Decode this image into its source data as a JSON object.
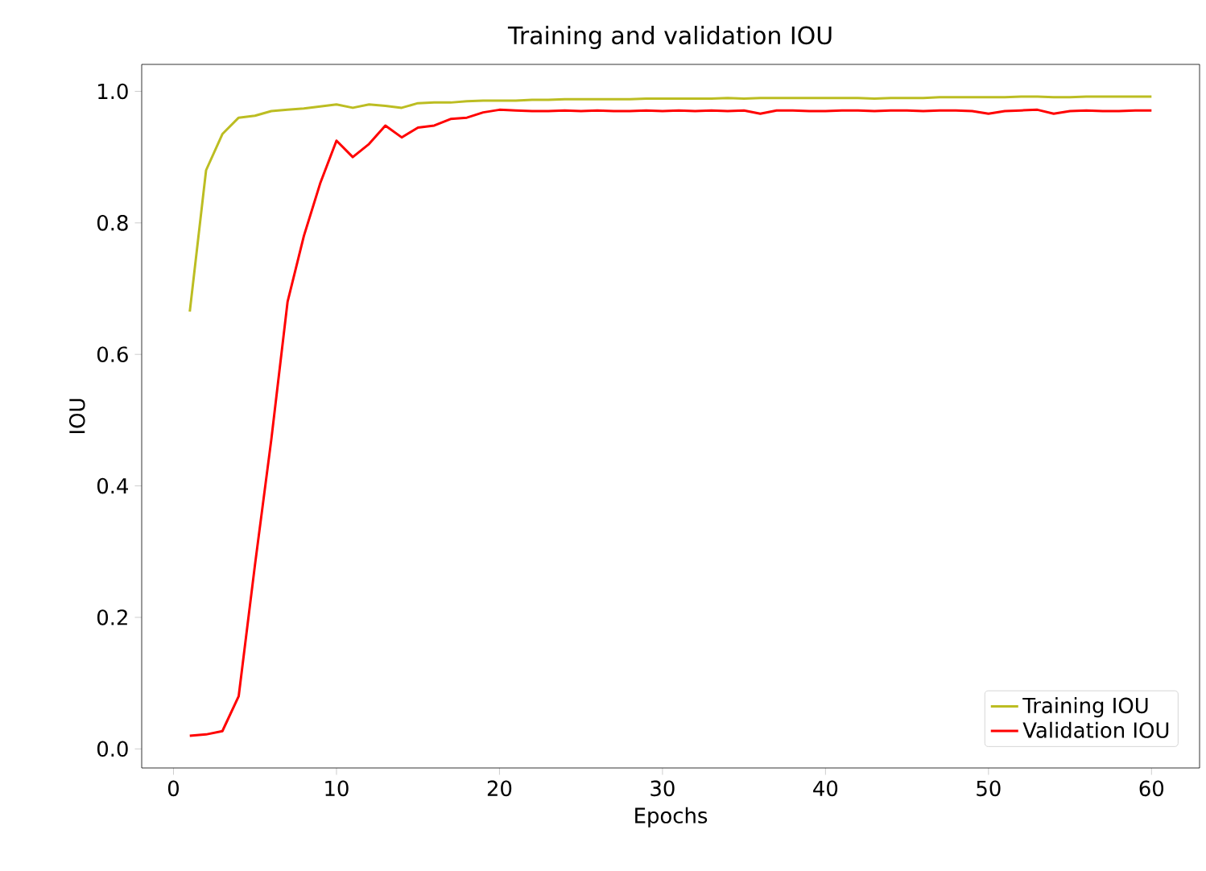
{
  "chart_data": {
    "type": "line",
    "title": "Training and validation IOU",
    "xlabel": "Epochs",
    "ylabel": "IOU",
    "x": [
      1,
      2,
      3,
      4,
      5,
      6,
      7,
      8,
      9,
      10,
      11,
      12,
      13,
      14,
      15,
      16,
      17,
      18,
      19,
      20,
      21,
      22,
      23,
      24,
      25,
      26,
      27,
      28,
      29,
      30,
      31,
      32,
      33,
      34,
      35,
      36,
      37,
      38,
      39,
      40,
      41,
      42,
      43,
      44,
      45,
      46,
      47,
      48,
      49,
      50,
      51,
      52,
      53,
      54,
      55,
      56,
      57,
      58,
      59,
      60
    ],
    "series": [
      {
        "name": "Training IOU",
        "color": "#bcbd22",
        "values": [
          0.665,
          0.88,
          0.935,
          0.96,
          0.963,
          0.97,
          0.972,
          0.974,
          0.977,
          0.98,
          0.975,
          0.98,
          0.978,
          0.975,
          0.982,
          0.983,
          0.983,
          0.985,
          0.986,
          0.986,
          0.986,
          0.987,
          0.987,
          0.988,
          0.988,
          0.988,
          0.988,
          0.988,
          0.989,
          0.989,
          0.989,
          0.989,
          0.989,
          0.99,
          0.989,
          0.99,
          0.99,
          0.99,
          0.99,
          0.99,
          0.99,
          0.99,
          0.989,
          0.99,
          0.99,
          0.99,
          0.991,
          0.991,
          0.991,
          0.991,
          0.991,
          0.992,
          0.992,
          0.991,
          0.991,
          0.992,
          0.992,
          0.992,
          0.992,
          0.992
        ]
      },
      {
        "name": "Validation IOU",
        "color": "#ff0000",
        "values": [
          0.02,
          0.022,
          0.027,
          0.08,
          0.28,
          0.47,
          0.68,
          0.78,
          0.86,
          0.925,
          0.9,
          0.92,
          0.948,
          0.93,
          0.945,
          0.948,
          0.958,
          0.96,
          0.968,
          0.972,
          0.971,
          0.97,
          0.97,
          0.971,
          0.97,
          0.971,
          0.97,
          0.97,
          0.971,
          0.97,
          0.971,
          0.97,
          0.971,
          0.97,
          0.971,
          0.966,
          0.971,
          0.971,
          0.97,
          0.97,
          0.971,
          0.971,
          0.97,
          0.971,
          0.971,
          0.97,
          0.971,
          0.971,
          0.97,
          0.966,
          0.97,
          0.971,
          0.972,
          0.966,
          0.97,
          0.971,
          0.97,
          0.97,
          0.971,
          0.971
        ]
      }
    ],
    "xlim": [
      -1.95,
      62.95
    ],
    "ylim": [
      -0.029,
      1.041
    ],
    "xticks": [
      0,
      10,
      20,
      30,
      40,
      50,
      60
    ],
    "yticks": [
      {
        "value": 0,
        "label": "0.0"
      },
      0.2,
      0.4,
      0.6,
      0.8,
      {
        "value": 1,
        "label": "1.0"
      }
    ],
    "legend": "bottom right",
    "grid": false,
    "line_style": "solid",
    "marker": "none"
  }
}
